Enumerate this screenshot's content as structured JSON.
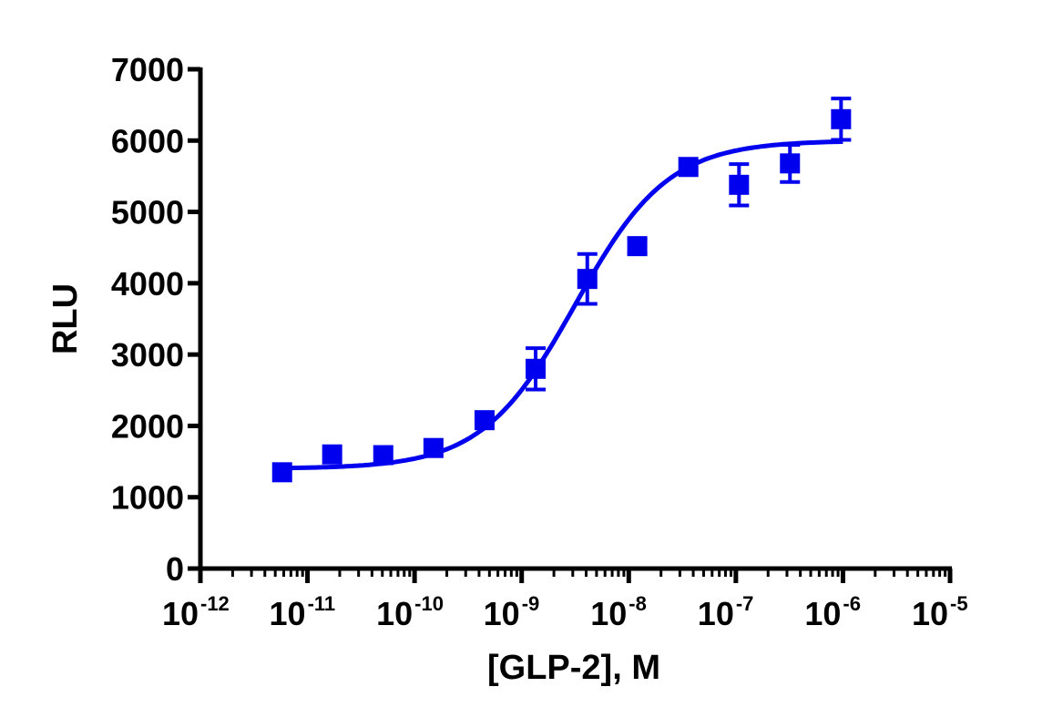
{
  "chart_data": {
    "type": "scatter",
    "title": "",
    "xlabel": "[GLP-2], M",
    "ylabel": "RLU",
    "x_scale": "log",
    "xlim": [
      1e-12,
      1e-05
    ],
    "ylim": [
      0,
      7000
    ],
    "grid": false,
    "legend": "none",
    "color": "#0000ee",
    "x_ticks": [
      {
        "base": "10",
        "exp": "-12",
        "value": 1e-12
      },
      {
        "base": "10",
        "exp": "-11",
        "value": 1e-11
      },
      {
        "base": "10",
        "exp": "-10",
        "value": 1e-10
      },
      {
        "base": "10",
        "exp": "-9",
        "value": 1e-09
      },
      {
        "base": "10",
        "exp": "-8",
        "value": 1e-08
      },
      {
        "base": "10",
        "exp": "-7",
        "value": 1e-07
      },
      {
        "base": "10",
        "exp": "-6",
        "value": 1e-06
      },
      {
        "base": "10",
        "exp": "-5",
        "value": 1e-05
      }
    ],
    "y_ticks": [
      "0",
      "1000",
      "2000",
      "3000",
      "4000",
      "5000",
      "6000",
      "7000"
    ],
    "points": [
      {
        "x": 5.8e-12,
        "y": 1350,
        "err": 0
      },
      {
        "x": 1.7e-11,
        "y": 1600,
        "err": 0
      },
      {
        "x": 5.1e-11,
        "y": 1590,
        "err": 0
      },
      {
        "x": 1.5e-10,
        "y": 1690,
        "err": 0
      },
      {
        "x": 4.5e-10,
        "y": 2080,
        "err": 0
      },
      {
        "x": 1.35e-09,
        "y": 2800,
        "err": 290
      },
      {
        "x": 4.1e-09,
        "y": 4060,
        "err": 350
      },
      {
        "x": 1.2e-08,
        "y": 4520,
        "err": 100
      },
      {
        "x": 3.6e-08,
        "y": 5630,
        "err": 0
      },
      {
        "x": 1.07e-07,
        "y": 5380,
        "err": 290
      },
      {
        "x": 3.2e-07,
        "y": 5680,
        "err": 260
      },
      {
        "x": 9.6e-07,
        "y": 6300,
        "err": 290
      }
    ],
    "fit": {
      "model": "sigmoidal dose-response",
      "bottom": 1400,
      "top": 6000,
      "log_ec50": -8.5,
      "hill": 1.0,
      "x_range": [
        5e-12,
        1e-06
      ]
    }
  }
}
